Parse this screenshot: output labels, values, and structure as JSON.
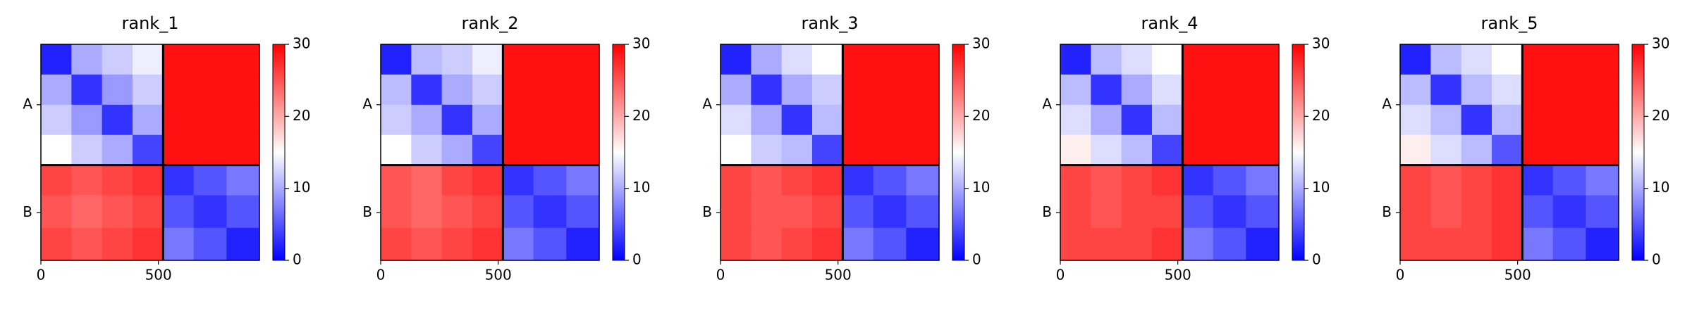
{
  "chart_data": [
    {
      "type": "heatmap",
      "title": "rank_1",
      "x_edges": [
        0,
        130,
        260,
        390,
        520,
        650,
        790,
        930
      ],
      "y_edges": [
        0,
        130,
        260,
        390,
        520,
        650,
        790,
        930
      ],
      "z": [
        [
          2,
          10,
          12,
          14,
          29,
          29,
          29
        ],
        [
          10,
          3,
          9,
          12,
          29,
          29,
          29
        ],
        [
          12,
          9,
          3,
          10,
          29,
          29,
          29
        ],
        [
          15,
          12,
          10,
          4,
          29,
          29,
          29
        ],
        [
          26,
          25,
          26,
          27,
          3,
          5,
          7
        ],
        [
          25,
          24,
          25,
          26,
          5,
          3,
          5
        ],
        [
          26,
          25,
          26,
          27,
          7,
          5,
          2
        ]
      ],
      "xlim": [
        0,
        930
      ],
      "xticks": [
        0,
        500
      ],
      "ylim": [
        930,
        0
      ],
      "yticks": [
        {
          "value": 260,
          "label": "A"
        },
        {
          "value": 725,
          "label": "B"
        }
      ],
      "boundaries": [
        520
      ],
      "colorbar": {
        "lim": [
          0,
          30
        ],
        "ticks": [
          0,
          10,
          20,
          30
        ],
        "colors": [
          "#0000ff",
          "#ffffff",
          "#ff0000"
        ]
      }
    },
    {
      "type": "heatmap",
      "title": "rank_2",
      "x_edges": [
        0,
        130,
        260,
        390,
        520,
        650,
        790,
        930
      ],
      "y_edges": [
        0,
        130,
        260,
        390,
        520,
        650,
        790,
        930
      ],
      "z": [
        [
          2,
          11,
          12,
          14,
          29,
          29,
          29
        ],
        [
          11,
          3,
          10,
          12,
          29,
          29,
          29
        ],
        [
          12,
          10,
          3,
          10,
          29,
          29,
          29
        ],
        [
          15,
          12,
          10,
          4,
          29,
          29,
          29
        ],
        [
          25,
          24,
          26,
          27,
          3,
          5,
          7
        ],
        [
          25,
          24,
          25,
          26,
          5,
          3,
          5
        ],
        [
          26,
          25,
          26,
          27,
          7,
          5,
          2
        ]
      ],
      "xlim": [
        0,
        930
      ],
      "xticks": [
        0,
        500
      ],
      "ylim": [
        930,
        0
      ],
      "yticks": [
        {
          "value": 260,
          "label": "A"
        },
        {
          "value": 725,
          "label": "B"
        }
      ],
      "boundaries": [
        520
      ],
      "colorbar": {
        "lim": [
          0,
          30
        ],
        "ticks": [
          0,
          10,
          20,
          30
        ],
        "colors": [
          "#0000ff",
          "#ffffff",
          "#ff0000"
        ]
      }
    },
    {
      "type": "heatmap",
      "title": "rank_3",
      "x_edges": [
        0,
        130,
        260,
        390,
        520,
        650,
        790,
        930
      ],
      "y_edges": [
        0,
        130,
        260,
        390,
        520,
        650,
        790,
        930
      ],
      "z": [
        [
          2,
          10,
          13,
          15,
          29,
          29,
          29
        ],
        [
          10,
          3,
          10,
          12,
          29,
          29,
          29
        ],
        [
          13,
          10,
          3,
          11,
          29,
          29,
          29
        ],
        [
          15,
          12,
          11,
          4,
          29,
          29,
          29
        ],
        [
          26,
          25,
          26,
          27,
          3,
          5,
          7
        ],
        [
          26,
          25,
          25,
          26,
          5,
          3,
          5
        ],
        [
          26,
          25,
          26,
          27,
          7,
          5,
          2
        ]
      ],
      "xlim": [
        0,
        930
      ],
      "xticks": [
        0,
        500
      ],
      "ylim": [
        930,
        0
      ],
      "yticks": [
        {
          "value": 260,
          "label": "A"
        },
        {
          "value": 725,
          "label": "B"
        }
      ],
      "boundaries": [
        520
      ],
      "colorbar": {
        "lim": [
          0,
          30
        ],
        "ticks": [
          0,
          10,
          20,
          30
        ],
        "colors": [
          "#0000ff",
          "#ffffff",
          "#ff0000"
        ]
      }
    },
    {
      "type": "heatmap",
      "title": "rank_4",
      "x_edges": [
        0,
        130,
        260,
        390,
        520,
        650,
        790,
        930
      ],
      "y_edges": [
        0,
        130,
        260,
        390,
        520,
        650,
        790,
        930
      ],
      "z": [
        [
          2,
          11,
          13,
          15,
          29,
          29,
          29
        ],
        [
          11,
          3,
          10,
          13,
          29,
          29,
          29
        ],
        [
          13,
          10,
          3,
          11,
          29,
          29,
          29
        ],
        [
          16,
          13,
          11,
          4,
          29,
          29,
          29
        ],
        [
          26,
          25,
          26,
          27,
          3,
          5,
          7
        ],
        [
          26,
          25,
          26,
          26,
          5,
          3,
          5
        ],
        [
          26,
          26,
          26,
          27,
          7,
          5,
          2
        ]
      ],
      "xlim": [
        0,
        930
      ],
      "xticks": [
        0,
        500
      ],
      "ylim": [
        930,
        0
      ],
      "yticks": [
        {
          "value": 260,
          "label": "A"
        },
        {
          "value": 725,
          "label": "B"
        }
      ],
      "boundaries": [
        520
      ],
      "colorbar": {
        "lim": [
          0,
          30
        ],
        "ticks": [
          0,
          10,
          20,
          30
        ],
        "colors": [
          "#0000ff",
          "#ffffff",
          "#ff0000"
        ]
      }
    },
    {
      "type": "heatmap",
      "title": "rank_5",
      "x_edges": [
        0,
        130,
        260,
        390,
        520,
        650,
        790,
        930
      ],
      "y_edges": [
        0,
        130,
        260,
        390,
        520,
        650,
        790,
        930
      ],
      "z": [
        [
          2,
          11,
          13,
          15,
          29,
          29,
          29
        ],
        [
          11,
          3,
          11,
          13,
          29,
          29,
          29
        ],
        [
          13,
          11,
          3,
          11,
          29,
          29,
          29
        ],
        [
          16,
          13,
          11,
          5,
          29,
          29,
          29
        ],
        [
          26,
          25,
          26,
          27,
          3,
          5,
          7
        ],
        [
          26,
          25,
          26,
          27,
          5,
          3,
          5
        ],
        [
          26,
          26,
          26,
          27,
          7,
          5,
          2
        ]
      ],
      "xlim": [
        0,
        930
      ],
      "xticks": [
        0,
        500
      ],
      "ylim": [
        930,
        0
      ],
      "yticks": [
        {
          "value": 260,
          "label": "A"
        },
        {
          "value": 725,
          "label": "B"
        }
      ],
      "boundaries": [
        520
      ],
      "colorbar": {
        "lim": [
          0,
          30
        ],
        "ticks": [
          0,
          10,
          20,
          30
        ],
        "colors": [
          "#0000ff",
          "#ffffff",
          "#ff0000"
        ]
      }
    }
  ]
}
